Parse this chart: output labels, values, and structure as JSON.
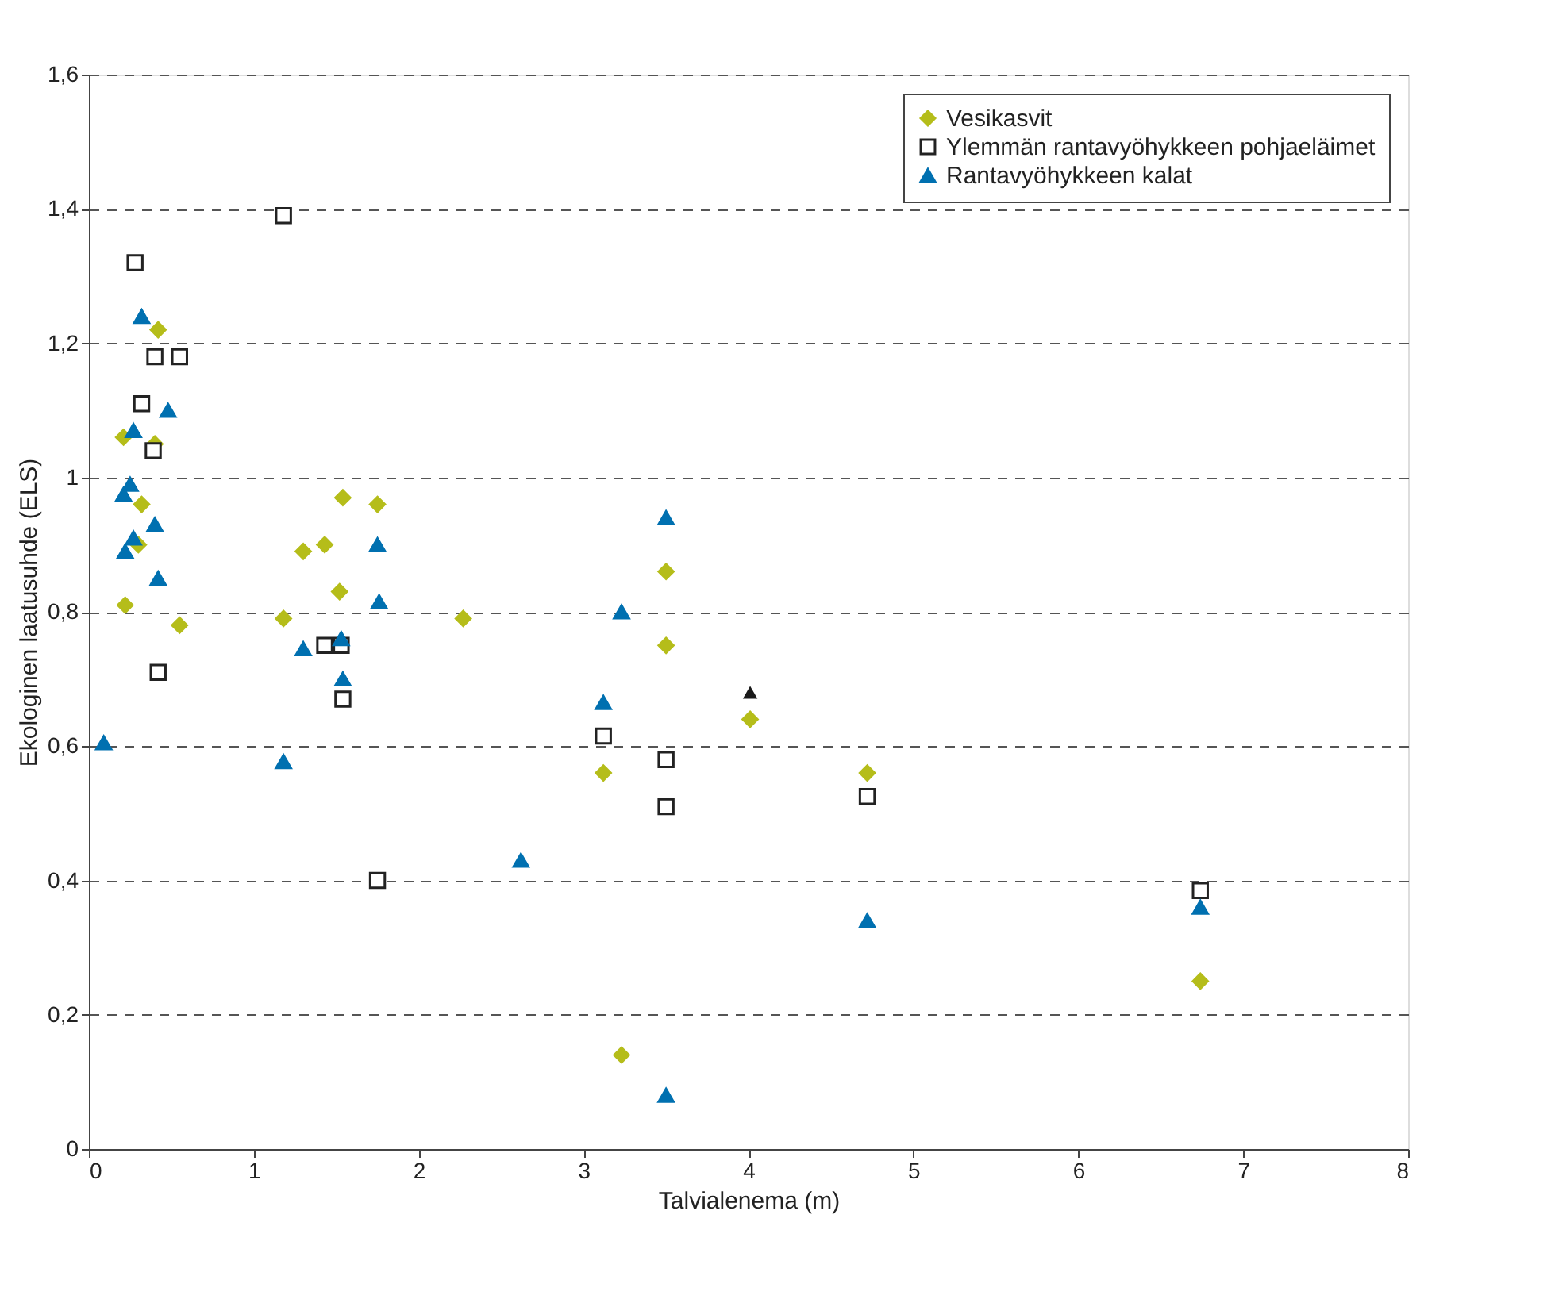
{
  "chart_data": {
    "type": "scatter",
    "xlabel": "Talvialenema (m)",
    "ylabel": "Ekologinen laatusuhde (ELS)",
    "xlim": [
      0,
      8
    ],
    "xticks": [
      0,
      1,
      2,
      3,
      4,
      5,
      6,
      7,
      8
    ],
    "ylim": [
      0,
      1.6
    ],
    "yticks": [
      0,
      {
        "value": 0.2,
        "label": "0,2"
      },
      {
        "value": 0.4,
        "label": "0,4"
      },
      {
        "value": 0.6,
        "label": "0,6"
      },
      {
        "value": 0.8,
        "label": "0,8"
      },
      1,
      {
        "value": 1.2,
        "label": "1,2"
      },
      {
        "value": 1.4,
        "label": "1,4"
      },
      {
        "value": 1.6,
        "label": "1,6"
      }
    ],
    "grid": "y",
    "legend": "top right",
    "series": [
      {
        "name": "Vesikasvit",
        "color": "#b5bd1a",
        "marker": "diamond",
        "x": [
          0.42,
          0.21,
          0.4,
          0.32,
          0.3,
          0.22,
          0.55,
          1.3,
          1.43,
          1.54,
          1.75,
          1.52,
          1.18,
          2.27,
          3.12,
          3.23,
          3.5,
          3.5,
          4.01,
          4.72,
          6.74
        ],
        "values": [
          1.22,
          1.06,
          1.05,
          0.96,
          0.9,
          0.81,
          0.78,
          0.89,
          0.9,
          0.97,
          0.96,
          0.83,
          0.79,
          0.79,
          0.56,
          0.14,
          0.86,
          0.75,
          0.64,
          0.56,
          0.25
        ]
      },
      {
        "name": "Ylemmän rantavyöhykkeen pohjaeläimet",
        "color": "#222222",
        "marker": "square",
        "x": [
          0.28,
          0.32,
          0.4,
          0.55,
          0.39,
          0.42,
          1.18,
          1.43,
          1.53,
          1.54,
          1.75,
          3.12,
          3.5,
          3.5,
          4.72,
          6.74
        ],
        "values": [
          1.32,
          1.11,
          1.18,
          1.18,
          1.04,
          0.71,
          1.39,
          0.75,
          0.75,
          0.67,
          0.4,
          0.615,
          0.58,
          0.51,
          0.525,
          0.385
        ]
      },
      {
        "name": "Rantavyöhykkeen kalat",
        "color": "#0070b0",
        "marker": "triangle",
        "x": [
          0.32,
          0.48,
          0.27,
          0.25,
          0.21,
          0.4,
          0.27,
          0.22,
          0.42,
          0.09,
          1.18,
          1.3,
          1.53,
          1.54,
          1.75,
          1.76,
          2.62,
          3.12,
          3.23,
          3.5,
          3.5,
          4.72,
          6.74
        ],
        "values": [
          1.24,
          1.1,
          1.07,
          0.99,
          0.975,
          0.93,
          0.91,
          0.89,
          0.85,
          0.605,
          0.577,
          0.745,
          0.76,
          0.7,
          0.9,
          0.815,
          0.43,
          0.665,
          0.8,
          0.94,
          0.08,
          0.34,
          0.36
        ]
      },
      {
        "color": "#1a1a1a",
        "marker": "triangle",
        "x": [
          4.01
        ],
        "values": [
          0.68
        ]
      }
    ]
  }
}
